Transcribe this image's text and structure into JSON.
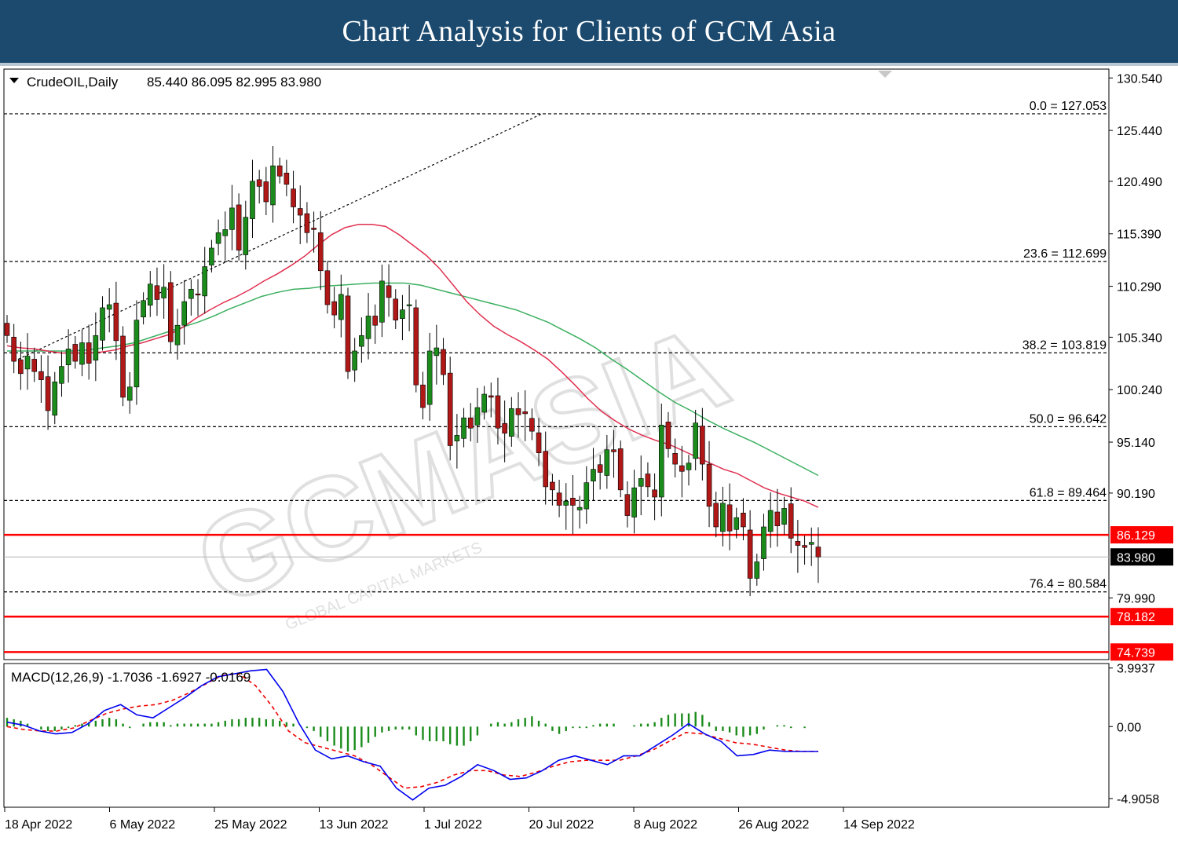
{
  "banner": {
    "title": "Chart Analysis for Clients of GCM Asia"
  },
  "watermark": {
    "brand": "GCMASIA",
    "sub": "GLOBAL CAPITAL MARKETS"
  },
  "chart_data": {
    "type": "candlestick",
    "symbol_header": "CrudeOIL,Daily",
    "ohlc_header": "85.440 86.095 82.995 83.980",
    "price_axis_ticks": [
      "130.540",
      "125.440",
      "120.490",
      "115.390",
      "110.290",
      "105.340",
      "100.240",
      "95.140",
      "90.190",
      "79.990"
    ],
    "ylim": [
      74.0,
      131.4
    ],
    "x_labels": [
      "18 Apr 2022",
      "6 May 2022",
      "25 May 2022",
      "13 Jun 2022",
      "1 Jul 2022",
      "20 Jul 2022",
      "8 Aug 2022",
      "26 Aug 2022",
      "14 Sep 2022"
    ],
    "fib_levels": [
      {
        "label": "0.0 = 127.053",
        "value": 127.053
      },
      {
        "label": "23.6 = 112.699",
        "value": 112.699
      },
      {
        "label": "38.2 = 103.819",
        "value": 103.819
      },
      {
        "label": "50.0 = 96.642",
        "value": 96.642
      },
      {
        "label": "61.8 = 89.464",
        "value": 89.464
      },
      {
        "label": "76.4 = 80.584",
        "value": 80.584
      }
    ],
    "support_resistance": [
      {
        "label": "86.129",
        "value": 86.129
      },
      {
        "label": "78.182",
        "value": 78.182
      },
      {
        "label": "74.739",
        "value": 74.739
      }
    ],
    "current_price": {
      "label": "83.980",
      "value": 83.98
    },
    "closes": [
      105.5,
      103.0,
      101.8,
      103.5,
      102.0,
      101.2,
      98.2,
      101.0,
      102.5,
      104.2,
      103.0,
      104.8,
      102.8,
      105.5,
      108.2,
      108.5,
      105.0,
      99.5,
      100.5,
      107.0,
      108.9,
      110.5,
      109.0,
      110.2,
      104.9,
      106.5,
      108.8,
      110.0,
      109.5,
      112.2,
      114.0,
      115.5,
      115.8,
      117.9,
      113.8,
      117.0,
      120.5,
      120.0,
      118.5,
      122.0,
      121.0,
      120.2,
      118.0,
      117.2,
      115.5,
      115.8,
      111.8,
      108.5,
      107.5,
      109.5,
      102.0,
      104.0,
      105.5,
      107.4,
      106.5,
      110.8,
      109.2,
      107.0,
      108.0,
      108.5,
      100.7,
      98.5,
      104.0,
      104.3,
      101.7,
      94.8,
      95.8,
      97.5,
      96.5,
      98.5,
      99.8,
      99.5,
      96.5,
      96.0,
      98.4,
      97.8,
      97.9,
      96.2,
      94.1,
      90.8,
      90.5,
      89.0,
      89.4,
      89.0,
      88.8,
      91.2,
      92.5,
      92.2,
      94.4,
      94.2,
      90.5,
      88.0,
      90.7,
      91.6,
      90.8,
      89.8,
      96.8,
      94.5,
      93.0,
      92.3,
      93.1,
      97.0,
      93.0,
      88.9,
      86.9,
      89.2,
      86.5,
      87.8,
      86.9,
      81.9,
      83.5,
      86.9,
      88.5,
      87.0,
      88.7,
      85.8,
      85.1,
      84.9,
      85.4,
      83.98
    ],
    "ma_fast": [
      104.5,
      104.3,
      104.2,
      104.0,
      103.8,
      103.8,
      103.8,
      103.9,
      104.1,
      104.5,
      104.8,
      105.2,
      105.6,
      106.3,
      107.2,
      108.0,
      108.7,
      109.3,
      110.0,
      110.8,
      111.5,
      112.3,
      113.2,
      114.3,
      115.3,
      116.0,
      116.3,
      116.3,
      116.1,
      115.3,
      114.3,
      113.3,
      112.0,
      110.4,
      108.8,
      107.5,
      106.4,
      105.6,
      104.9,
      104.1,
      103.2,
      102.0,
      100.7,
      99.3,
      98.1,
      97.2,
      96.4,
      95.8,
      95.3,
      94.9,
      94.3,
      93.7,
      93.1,
      92.5,
      92.1,
      91.4,
      90.7,
      90.2,
      89.8,
      89.4,
      88.8
    ],
    "ma_slow": [
      104.0,
      104.0,
      104.0,
      104.0,
      104.0,
      104.1,
      104.3,
      104.5,
      104.8,
      105.3,
      105.8,
      106.3,
      106.8,
      107.4,
      108.1,
      108.7,
      109.3,
      109.7,
      110.0,
      110.1,
      110.3,
      110.4,
      110.5,
      110.6,
      110.6,
      110.6,
      110.4,
      110.0,
      109.6,
      109.2,
      108.8,
      108.4,
      108.0,
      107.4,
      106.8,
      106.0,
      105.2,
      104.3,
      103.2,
      102.2,
      101.1,
      100.0,
      99.0,
      98.2,
      97.3,
      96.5,
      95.8,
      95.1,
      94.3,
      93.5,
      92.7,
      91.9
    ],
    "macd": {
      "header": "MACD(12,26,9) -1.7036 -1.6927 -0.0169",
      "axis_ticks": [
        "3.9937",
        "0.00",
        "-4.9058"
      ],
      "ylim": [
        -5.5,
        4.3
      ],
      "histogram": [
        0.6,
        0.5,
        0.4,
        0.2,
        0.0,
        -0.2,
        -0.3,
        -0.3,
        -0.2,
        -0.1,
        0.1,
        0.2,
        0.3,
        0.4,
        0.5,
        0.6,
        0.5,
        0.2,
        -0.1,
        0.0,
        0.2,
        0.3,
        0.3,
        0.3,
        0.1,
        0.2,
        0.2,
        0.2,
        0.2,
        0.2,
        0.2,
        0.3,
        0.4,
        0.5,
        0.5,
        0.6,
        0.6,
        0.6,
        0.5,
        0.5,
        0.4,
        0.3,
        0.2,
        0.0,
        -0.1,
        -0.3,
        -0.7,
        -1.0,
        -1.3,
        -1.5,
        -1.7,
        -1.6,
        -1.4,
        -1.1,
        -0.7,
        -0.4,
        -0.3,
        -0.2,
        -0.2,
        -0.2,
        -0.6,
        -0.9,
        -1.0,
        -1.0,
        -1.0,
        -1.2,
        -1.3,
        -1.3,
        -1.0,
        -0.6,
        0.0,
        0.2,
        0.3,
        0.2,
        0.3,
        0.5,
        0.6,
        0.7,
        0.4,
        0.2,
        -0.3,
        -0.5,
        -0.3,
        -0.1,
        -0.1,
        -0.1,
        0.1,
        0.2,
        0.2,
        0.2,
        0.0,
        0.0,
        0.1,
        0.2,
        0.2,
        0.3,
        0.6,
        0.8,
        0.9,
        0.9,
        0.9,
        1.0,
        0.8,
        0.3,
        -0.3,
        -0.3,
        -0.4,
        -0.6,
        -0.7,
        -0.6,
        -0.5,
        -0.2,
        0.0,
        0.1,
        0.1,
        -0.1,
        0.0,
        -0.1,
        0.0,
        0.0
      ],
      "macd_line": [
        0.3,
        0.1,
        -0.3,
        -0.5,
        -0.4,
        0.2,
        1.1,
        1.5,
        0.8,
        0.6,
        1.3,
        2.0,
        2.8,
        3.4,
        3.6,
        3.8,
        3.9,
        2.4,
        0.2,
        -1.6,
        -2.2,
        -2.0,
        -2.4,
        -2.7,
        -4.2,
        -5.0,
        -4.2,
        -4.0,
        -3.4,
        -2.6,
        -3.0,
        -3.6,
        -3.5,
        -3.0,
        -2.3,
        -2.0,
        -2.3,
        -2.6,
        -2.0,
        -2.0,
        -1.3,
        -0.6,
        0.2,
        -0.5,
        -1.0,
        -2.0,
        -1.9,
        -1.6,
        -1.7,
        -1.7,
        -1.7
      ],
      "signal_line": [
        0.0,
        -0.2,
        -0.3,
        -0.3,
        -0.1,
        0.4,
        0.9,
        1.2,
        1.4,
        1.5,
        1.8,
        2.3,
        2.9,
        3.5,
        3.6,
        2.8,
        1.4,
        -0.3,
        -1.1,
        -1.4,
        -1.7,
        -2.0,
        -2.6,
        -3.4,
        -4.2,
        -4.1,
        -3.8,
        -3.3,
        -3.0,
        -3.0,
        -3.3,
        -3.4,
        -3.1,
        -2.7,
        -2.4,
        -2.3,
        -2.3,
        -2.3,
        -2.0,
        -1.6,
        -1.0,
        -0.4,
        -0.5,
        -0.8,
        -1.1,
        -1.2,
        -1.4,
        -1.6,
        -1.7,
        -1.7
      ],
      "colors": {
        "histogram": "#1b8c1b",
        "macd": "#0000ee",
        "signal": "#ee0000"
      }
    },
    "colors": {
      "bull": "#1b8c1b",
      "bear": "#b01818",
      "ma_fast": "#e03050",
      "ma_slow": "#3cb060",
      "support": "#ff0000",
      "trendline": "#000000"
    }
  }
}
